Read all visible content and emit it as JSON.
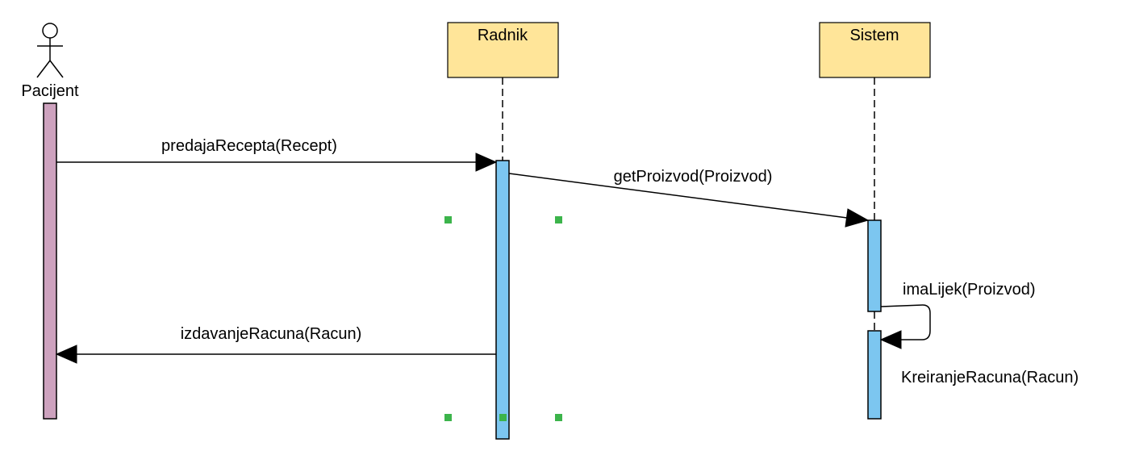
{
  "colors": {
    "participant_fill": "#ffe599",
    "actor_head": "#cda2be",
    "actor_activation": "#cda2be",
    "activation": "#7cc6f0",
    "selection_handle": "#3cb44b",
    "line": "#000000"
  },
  "actor": {
    "name": "Pacijent",
    "icon": "stick-figure-icon"
  },
  "participants": [
    {
      "name": "Radnik"
    },
    {
      "name": "Sistem"
    }
  ],
  "messages": [
    {
      "label": "predajaRecepta(Recept)",
      "from": "Pacijent",
      "to": "Radnik"
    },
    {
      "label": "getProizvod(Proizvod)",
      "from": "Radnik",
      "to": "Sistem"
    },
    {
      "label": "imaLijek(Proizvod)",
      "from": "Sistem",
      "to": "Sistem"
    },
    {
      "label": "izdavanjeRacuna(Racun)",
      "from": "Radnik",
      "to": "Pacijent"
    },
    {
      "label": "KreiranjeRacuna(Racun)",
      "from": "Sistem",
      "to": "Sistem"
    }
  ]
}
